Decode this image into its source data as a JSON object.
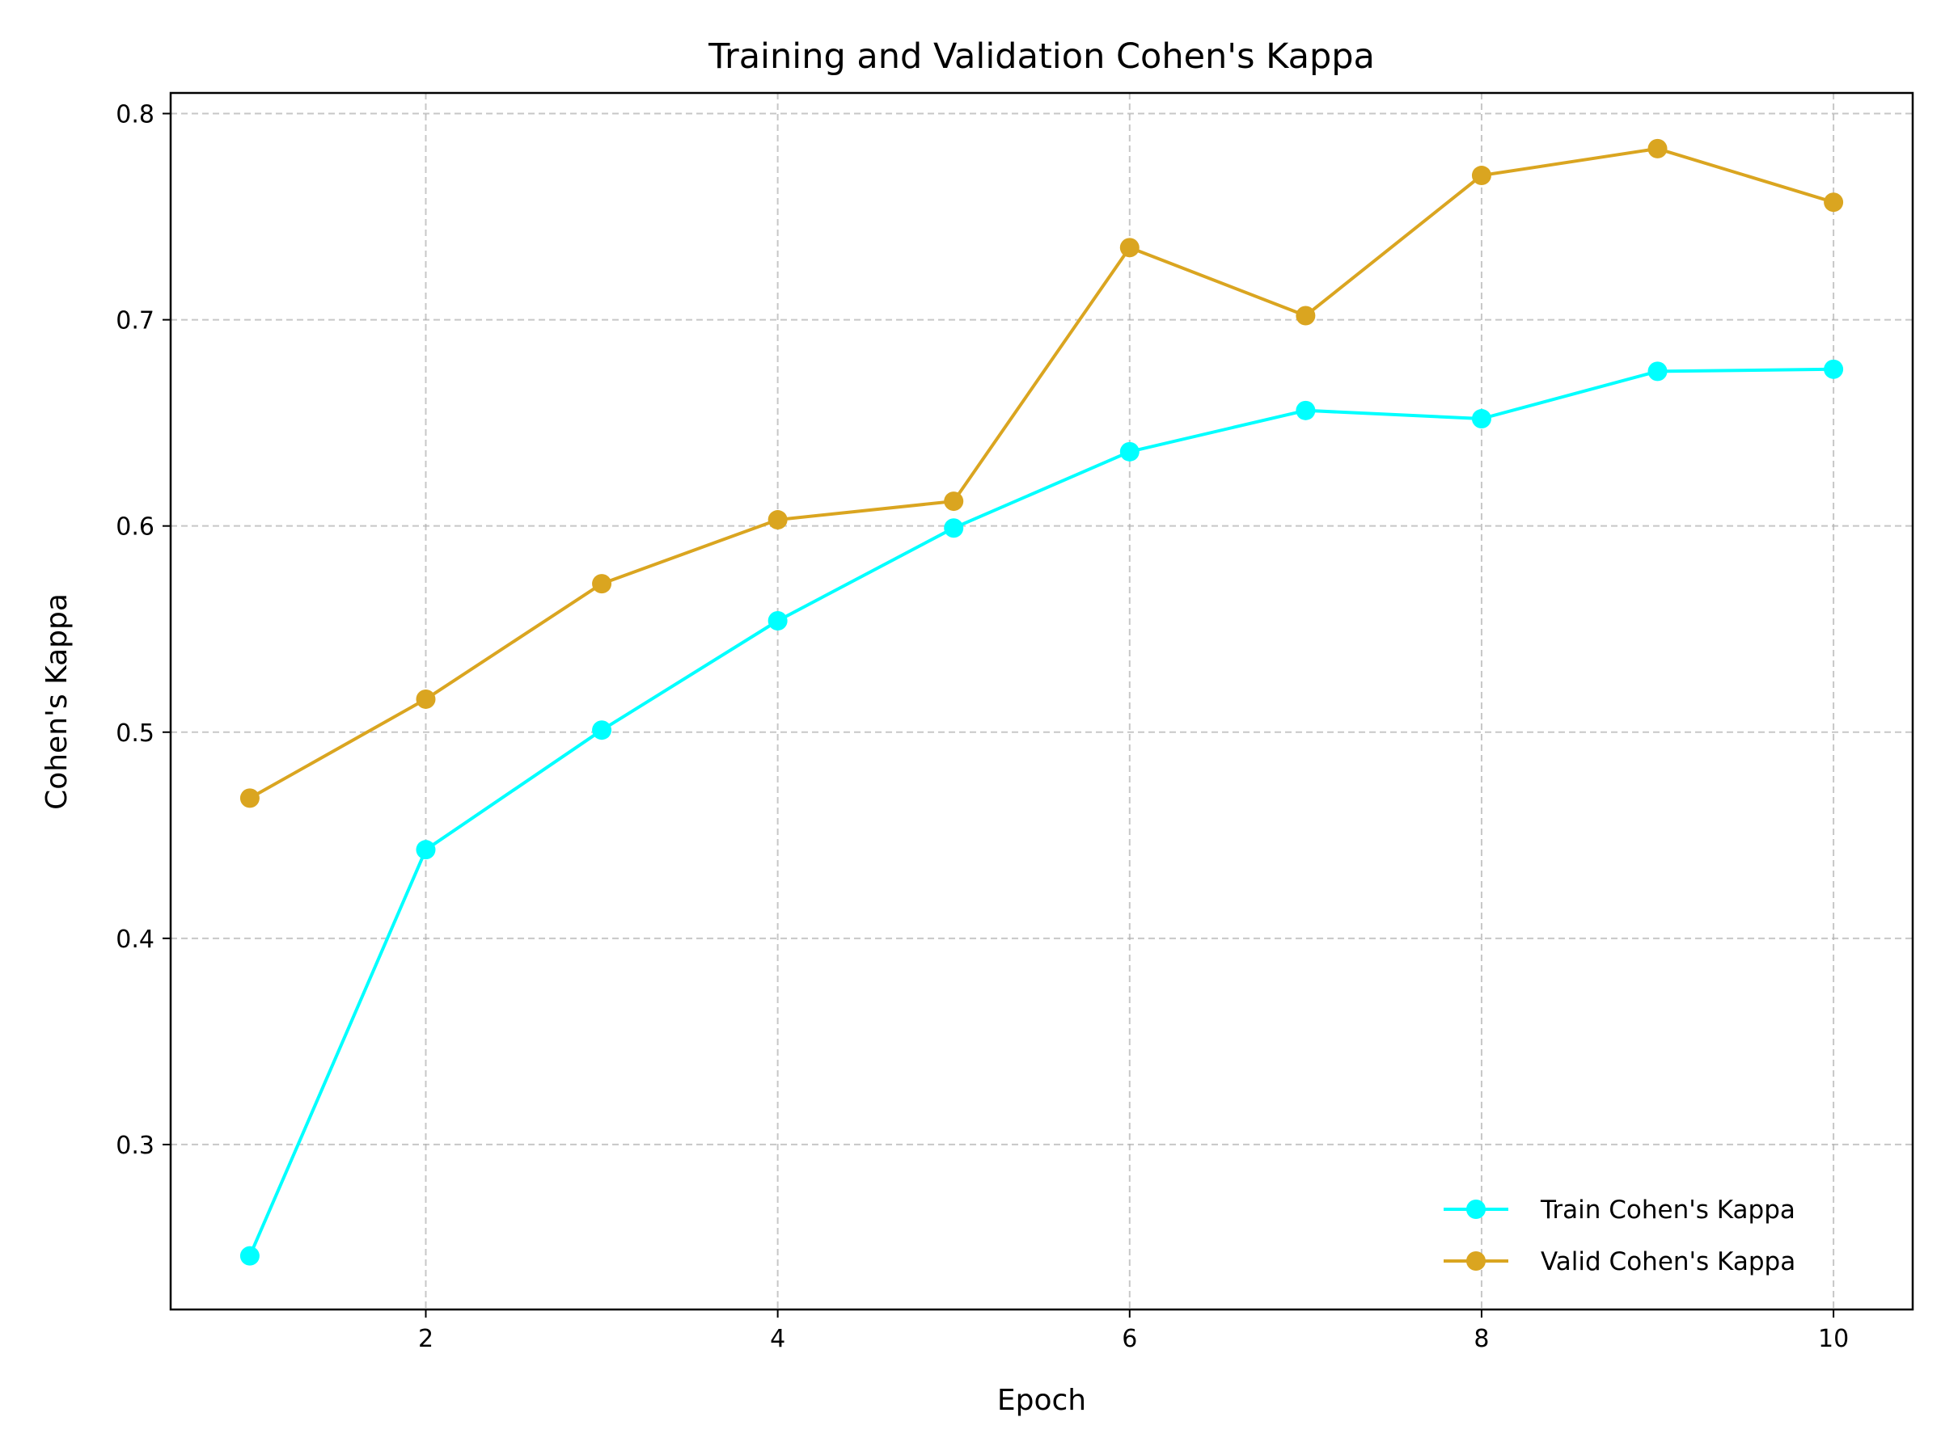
{
  "chart_data": {
    "type": "line",
    "title": "Training and Validation Cohen's Kappa",
    "xlabel": "Epoch",
    "ylabel": "Cohen's Kappa",
    "x": [
      1,
      2,
      3,
      4,
      5,
      6,
      7,
      8,
      9,
      10
    ],
    "xlim": [
      0.55,
      10.45
    ],
    "ylim": [
      0.22,
      0.81
    ],
    "xticks": [
      2,
      4,
      6,
      8,
      10
    ],
    "xtick_labels": [
      "2",
      "4",
      "6",
      "8",
      "10"
    ],
    "yticks": [
      0.3,
      0.4,
      0.5,
      0.6,
      0.7,
      0.8
    ],
    "ytick_labels": [
      "0.3",
      "0.4",
      "0.5",
      "0.6",
      "0.7",
      "0.8"
    ],
    "grid": true,
    "legend_position": "lower-right",
    "series": [
      {
        "name": "Train Cohen's Kappa",
        "color": "#00FFFF",
        "marker": "circle",
        "values": [
          0.246,
          0.443,
          0.501,
          0.554,
          0.599,
          0.636,
          0.656,
          0.652,
          0.675,
          0.676
        ]
      },
      {
        "name": "Valid Cohen's Kappa",
        "color": "#DAA520",
        "marker": "circle",
        "values": [
          0.468,
          0.516,
          0.572,
          0.603,
          0.612,
          0.735,
          0.702,
          0.77,
          0.783,
          0.757
        ]
      }
    ]
  }
}
